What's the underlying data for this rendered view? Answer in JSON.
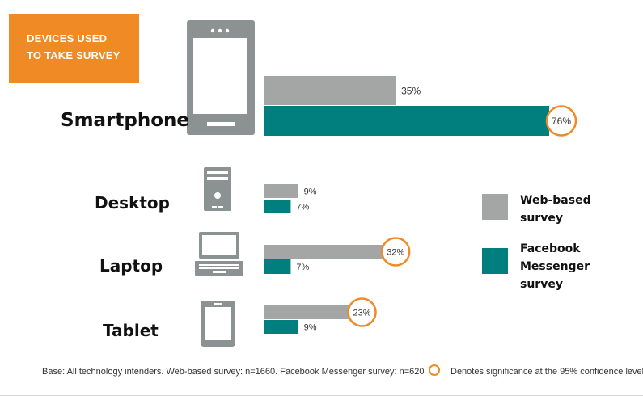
{
  "title_box": {
    "line1": "DEVICES USED",
    "line2": "TO TAKE SURVEY"
  },
  "colors": {
    "web": "#a4a6a6",
    "messenger": "#007f7e",
    "accent": "#ef8a24",
    "icon": "#8c9191"
  },
  "chart_data": {
    "type": "bar",
    "orientation": "horizontal",
    "categories": [
      "Smartphone",
      "Desktop",
      "Laptop",
      "Tablet"
    ],
    "series": [
      {
        "name": "Web-based survey",
        "values": [
          35,
          9,
          32,
          23
        ],
        "labels": [
          "35%",
          "9%",
          "32%",
          "23%"
        ]
      },
      {
        "name": "Facebook Messenger survey",
        "values": [
          76,
          7,
          7,
          9
        ],
        "labels": [
          "76%",
          "7%",
          "7%",
          "9%"
        ]
      }
    ],
    "significant": [
      [
        false,
        false,
        true,
        true
      ],
      [
        true,
        false,
        false,
        false
      ]
    ],
    "icons": [
      "smartphone-icon",
      "desktop-tower-icon",
      "laptop-icon",
      "tablet-icon"
    ],
    "xlim": [
      0,
      100
    ],
    "legend_position": "right"
  },
  "legend": {
    "web": [
      "Web-based",
      "survey"
    ],
    "messenger": [
      "Facebook",
      "Messenger",
      "survey"
    ]
  },
  "footer": {
    "base": "Base: All technology intenders. Web-based survey: n=1660. Facebook Messenger survey: n=620",
    "significance": "Denotes significance at the 95% confidence level"
  }
}
